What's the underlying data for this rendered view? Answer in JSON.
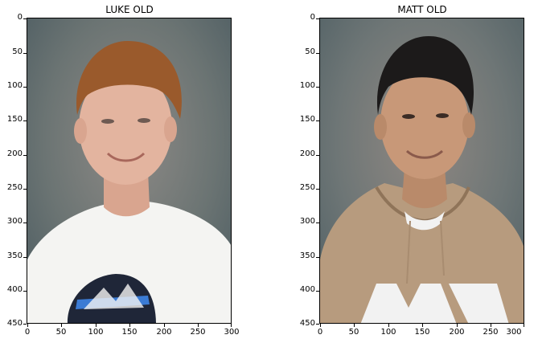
{
  "panels": [
    {
      "title": "LUKE OLD",
      "image_label": "portrait photo",
      "y_ticks": [
        "0",
        "50",
        "100",
        "150",
        "200",
        "250",
        "300",
        "350",
        "400",
        "450"
      ],
      "x_ticks": [
        "0",
        "50",
        "100",
        "150",
        "200",
        "250",
        "300"
      ],
      "colors": {
        "background": "#6f7a78",
        "hair": "#9a5a2c",
        "skin": "#e3b49f",
        "shirt": "#f4f4f2"
      }
    },
    {
      "title": "MATT OLD",
      "image_label": "portrait photo",
      "y_ticks": [
        "0",
        "50",
        "100",
        "150",
        "200",
        "250",
        "300",
        "350",
        "400",
        "450"
      ],
      "x_ticks": [
        "0",
        "50",
        "100",
        "150",
        "200",
        "250",
        "300"
      ],
      "colors": {
        "background": "#6f7a78",
        "hair": "#1c1a1a",
        "skin": "#c89878",
        "shirt": "#b79b7e"
      }
    }
  ]
}
